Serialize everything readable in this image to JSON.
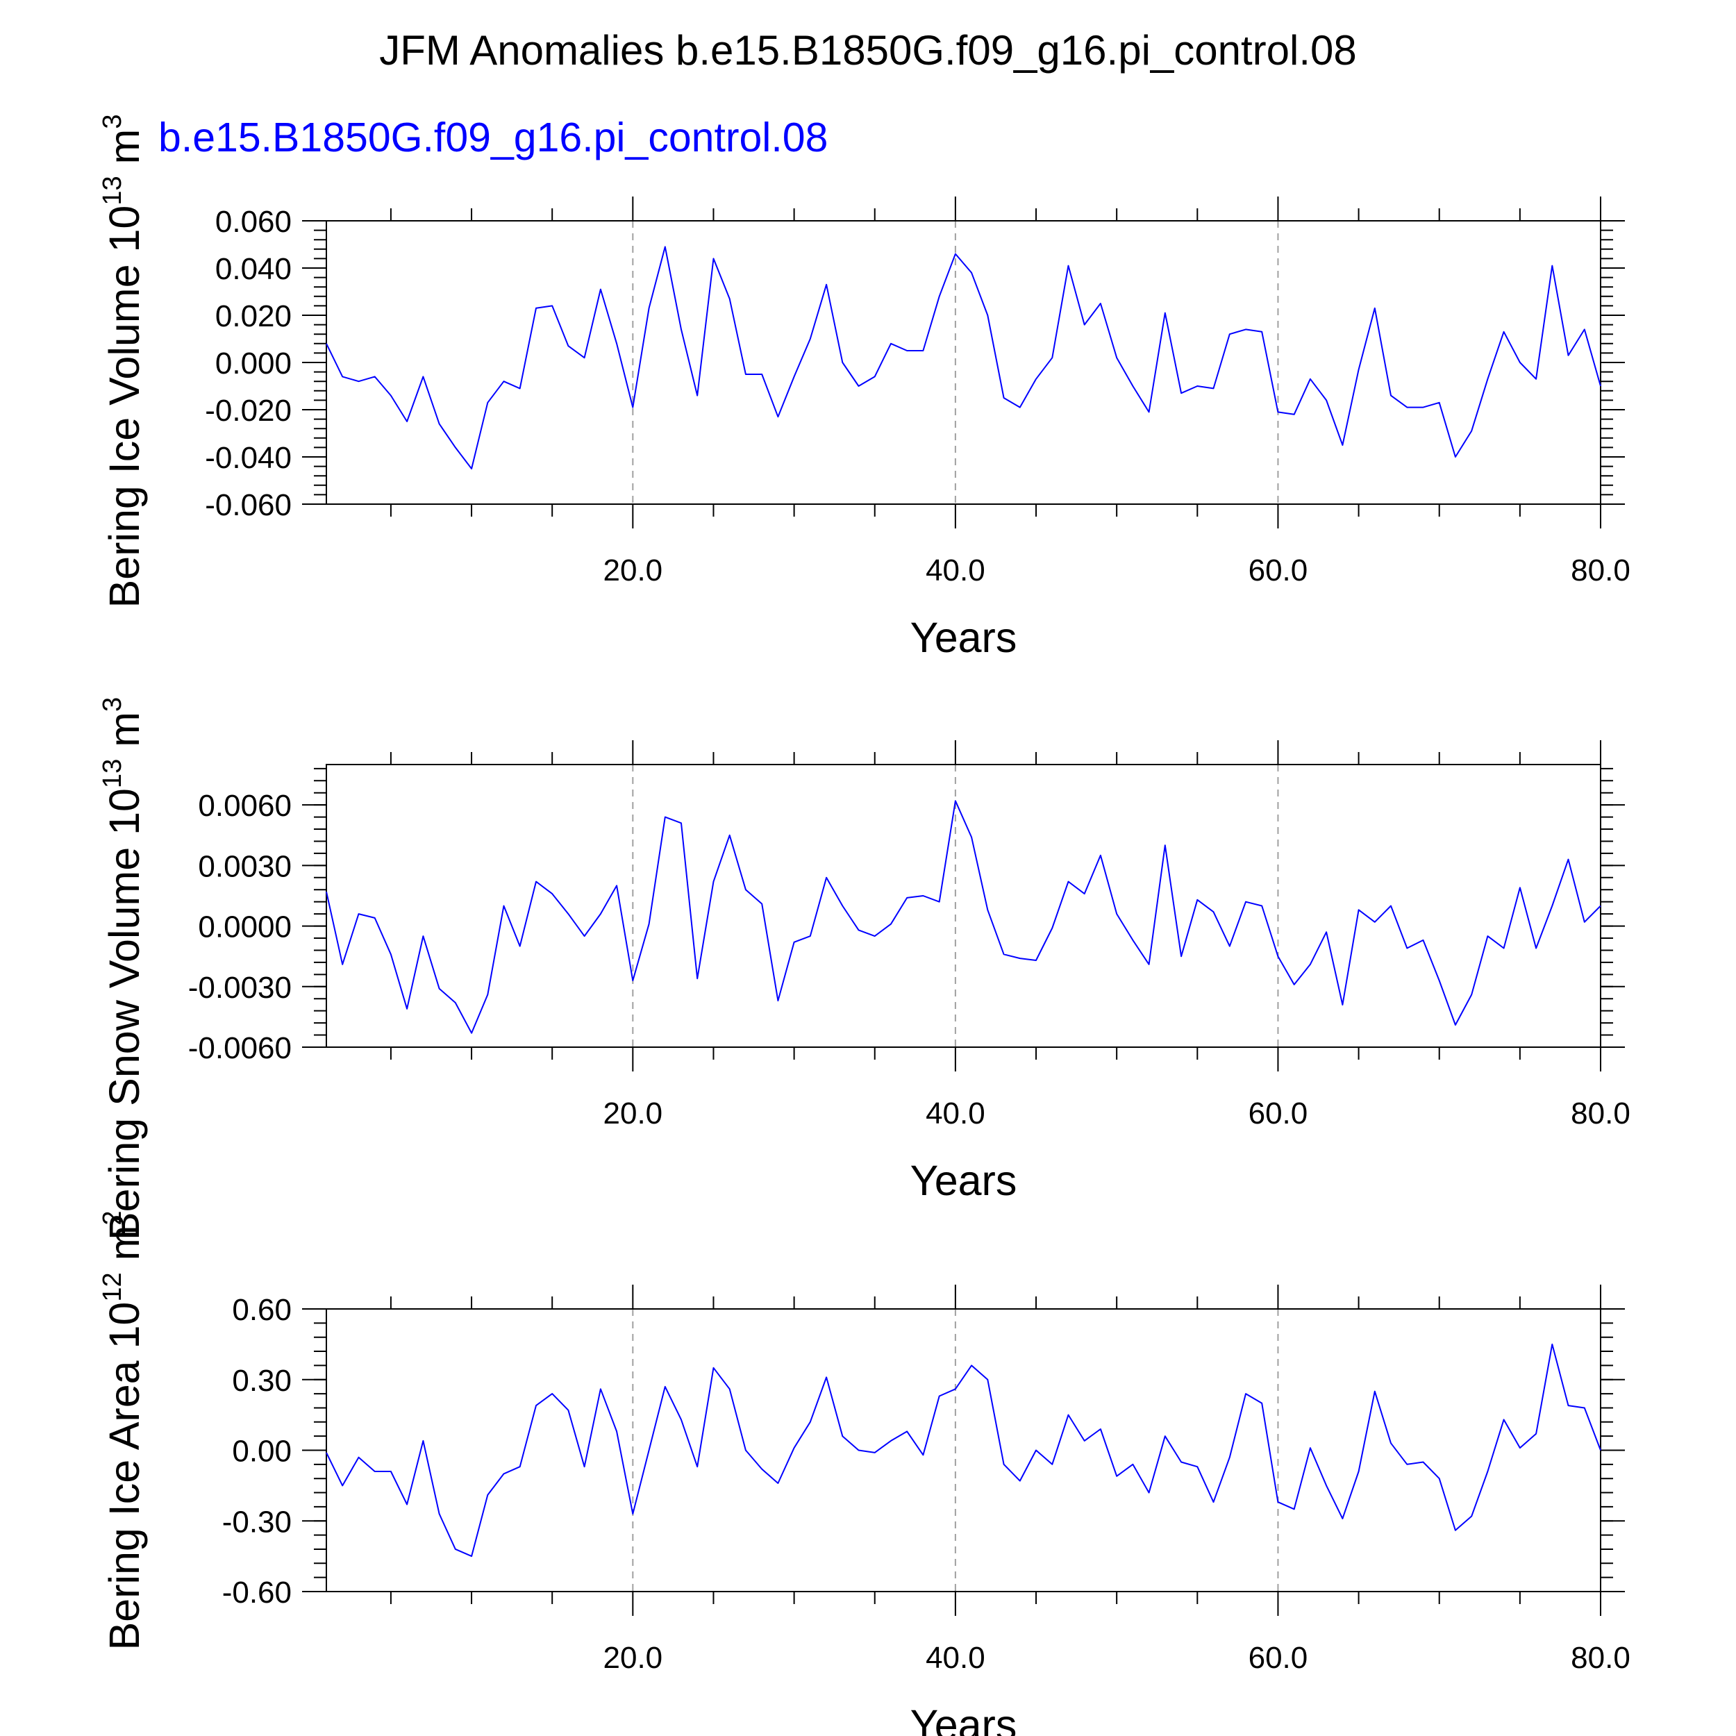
{
  "title": "JFM Anomalies b.e15.B1850G.f09_g16.pi_control.08",
  "subtitle": "b.e15.B1850G.f09_g16.pi_control.08",
  "colors": {
    "series": "#0000ff",
    "axes": "#000000",
    "grid": "#a0a0a0",
    "background": "#ffffff"
  },
  "chart_data": [
    {
      "type": "line",
      "ylabel": {
        "text": "Bering Ice Volume 10",
        "exponent": "13",
        "unit": " m",
        "unit_exponent": "3"
      },
      "xlabel": "Years",
      "xlim": [
        1,
        80
      ],
      "ylim": [
        -0.06,
        0.06
      ],
      "xticks": [
        20,
        40,
        60,
        80
      ],
      "xtick_labels": [
        "20.0",
        "40.0",
        "60.0",
        "80.0"
      ],
      "yticks": [
        0.06,
        0.04,
        0.02,
        0.0,
        -0.02,
        -0.04,
        -0.06
      ],
      "ytick_labels": [
        "0.060",
        "0.040",
        "0.020",
        "0.000",
        "-0.020",
        "-0.040",
        "-0.060"
      ],
      "grid": "dashed vertical at major x ticks",
      "x": [
        1,
        2,
        3,
        4,
        5,
        6,
        7,
        8,
        9,
        10,
        11,
        12,
        13,
        14,
        15,
        16,
        17,
        18,
        19,
        20,
        21,
        22,
        23,
        24,
        25,
        26,
        27,
        28,
        29,
        30,
        31,
        32,
        33,
        34,
        35,
        36,
        37,
        38,
        39,
        40,
        41,
        42,
        43,
        44,
        45,
        46,
        47,
        48,
        49,
        50,
        51,
        52,
        53,
        54,
        55,
        56,
        57,
        58,
        59,
        60,
        61,
        62,
        63,
        64,
        65,
        66,
        67,
        68,
        69,
        70,
        71,
        72,
        73,
        74,
        75,
        76,
        77,
        78,
        79,
        80
      ],
      "values": [
        0.008,
        -0.006,
        -0.008,
        -0.006,
        -0.014,
        -0.025,
        -0.006,
        -0.026,
        -0.036,
        -0.045,
        -0.017,
        -0.008,
        -0.011,
        0.023,
        0.024,
        0.007,
        0.002,
        0.031,
        0.008,
        -0.019,
        0.023,
        0.049,
        0.014,
        -0.014,
        0.044,
        0.027,
        -0.005,
        -0.005,
        -0.023,
        -0.006,
        0.01,
        0.033,
        0.0,
        -0.01,
        -0.006,
        0.008,
        0.005,
        0.005,
        0.028,
        0.046,
        0.038,
        0.02,
        -0.015,
        -0.019,
        -0.007,
        0.002,
        0.041,
        0.016,
        0.025,
        0.002,
        -0.01,
        -0.021,
        0.021,
        -0.013,
        -0.01,
        -0.011,
        0.012,
        0.014,
        0.013,
        -0.021,
        -0.022,
        -0.007,
        -0.016,
        -0.035,
        -0.003,
        0.023,
        -0.014,
        -0.019,
        -0.019,
        -0.017,
        -0.04,
        -0.029,
        -0.007,
        0.013,
        0.0,
        -0.007,
        0.041,
        0.003,
        0.014,
        -0.01
      ]
    },
    {
      "type": "line",
      "ylabel": {
        "text": "Bering Snow Volume 10",
        "exponent": "13",
        "unit": " m",
        "unit_exponent": "3"
      },
      "xlabel": "Years",
      "xlim": [
        1,
        80
      ],
      "ylim": [
        -0.006,
        0.008
      ],
      "xticks": [
        20,
        40,
        60,
        80
      ],
      "xtick_labels": [
        "20.0",
        "40.0",
        "60.0",
        "80.0"
      ],
      "yticks": [
        0.006,
        0.003,
        0.0,
        -0.003,
        -0.006
      ],
      "ytick_labels": [
        "0.0060",
        "0.0030",
        "0.0000",
        "-0.0030",
        "-0.0060"
      ],
      "grid": "dashed vertical at major x ticks",
      "x": [
        1,
        2,
        3,
        4,
        5,
        6,
        7,
        8,
        9,
        10,
        11,
        12,
        13,
        14,
        15,
        16,
        17,
        18,
        19,
        20,
        21,
        22,
        23,
        24,
        25,
        26,
        27,
        28,
        29,
        30,
        31,
        32,
        33,
        34,
        35,
        36,
        37,
        38,
        39,
        40,
        41,
        42,
        43,
        44,
        45,
        46,
        47,
        48,
        49,
        50,
        51,
        52,
        53,
        54,
        55,
        56,
        57,
        58,
        59,
        60,
        61,
        62,
        63,
        64,
        65,
        66,
        67,
        68,
        69,
        70,
        71,
        72,
        73,
        74,
        75,
        76,
        77,
        78,
        79,
        80
      ],
      "values": [
        0.0017,
        -0.0019,
        0.0006,
        0.0004,
        -0.0014,
        -0.0041,
        -0.0005,
        -0.0031,
        -0.0038,
        -0.0053,
        -0.0034,
        0.001,
        -0.001,
        0.0022,
        0.0016,
        0.0006,
        -0.0005,
        0.0006,
        0.002,
        -0.0027,
        0.0001,
        0.0054,
        0.0051,
        -0.0026,
        0.0022,
        0.0045,
        0.0018,
        0.0011,
        -0.0037,
        -0.0008,
        -0.0005,
        0.0024,
        0.001,
        -0.0002,
        -0.0005,
        0.0001,
        0.0014,
        0.0015,
        0.0012,
        0.0062,
        0.0044,
        0.0008,
        -0.0014,
        -0.0016,
        -0.0017,
        -0.0001,
        0.0022,
        0.0016,
        0.0035,
        0.0006,
        -0.0007,
        -0.0019,
        0.004,
        -0.0015,
        0.0013,
        0.0007,
        -0.001,
        0.0012,
        0.001,
        -0.0015,
        -0.0029,
        -0.0019,
        -0.0003,
        -0.0039,
        0.0008,
        0.0002,
        0.001,
        -0.0011,
        -0.0007,
        -0.0027,
        -0.0049,
        -0.0034,
        -0.0005,
        -0.0011,
        0.0019,
        -0.0011,
        0.001,
        0.0033,
        0.0002,
        0.001
      ]
    },
    {
      "type": "line",
      "ylabel": {
        "text": "Bering Ice Area 10",
        "exponent": "12",
        "unit": " m",
        "unit_exponent": "2"
      },
      "xlabel": "Years",
      "xlim": [
        1,
        80
      ],
      "ylim": [
        -0.6,
        0.6
      ],
      "xticks": [
        20,
        40,
        60,
        80
      ],
      "xtick_labels": [
        "20.0",
        "40.0",
        "60.0",
        "80.0"
      ],
      "yticks": [
        0.6,
        0.3,
        0.0,
        -0.3,
        -0.6
      ],
      "ytick_labels": [
        "0.60",
        "0.30",
        "0.00",
        "-0.30",
        "-0.60"
      ],
      "grid": "dashed vertical at major x ticks",
      "x": [
        1,
        2,
        3,
        4,
        5,
        6,
        7,
        8,
        9,
        10,
        11,
        12,
        13,
        14,
        15,
        16,
        17,
        18,
        19,
        20,
        21,
        22,
        23,
        24,
        25,
        26,
        27,
        28,
        29,
        30,
        31,
        32,
        33,
        34,
        35,
        36,
        37,
        38,
        39,
        40,
        41,
        42,
        43,
        44,
        45,
        46,
        47,
        48,
        49,
        50,
        51,
        52,
        53,
        54,
        55,
        56,
        57,
        58,
        59,
        60,
        61,
        62,
        63,
        64,
        65,
        66,
        67,
        68,
        69,
        70,
        71,
        72,
        73,
        74,
        75,
        76,
        77,
        78,
        79,
        80
      ],
      "values": [
        -0.01,
        -0.15,
        -0.03,
        -0.09,
        -0.09,
        -0.23,
        0.04,
        -0.27,
        -0.42,
        -0.45,
        -0.19,
        -0.1,
        -0.07,
        0.19,
        0.24,
        0.17,
        -0.07,
        0.26,
        0.08,
        -0.27,
        0.0,
        0.27,
        0.13,
        -0.07,
        0.35,
        0.26,
        0.0,
        -0.08,
        -0.14,
        0.01,
        0.12,
        0.31,
        0.06,
        0.0,
        -0.01,
        0.04,
        0.08,
        -0.02,
        0.23,
        0.26,
        0.36,
        0.3,
        -0.06,
        -0.13,
        0.0,
        -0.06,
        0.15,
        0.04,
        0.09,
        -0.11,
        -0.06,
        -0.18,
        0.06,
        -0.05,
        -0.07,
        -0.22,
        -0.03,
        0.24,
        0.2,
        -0.22,
        -0.25,
        0.01,
        -0.15,
        -0.29,
        -0.09,
        0.25,
        0.03,
        -0.06,
        -0.05,
        -0.12,
        -0.34,
        -0.28,
        -0.09,
        0.13,
        0.01,
        0.07,
        0.45,
        0.19,
        0.18,
        0.0
      ]
    }
  ]
}
